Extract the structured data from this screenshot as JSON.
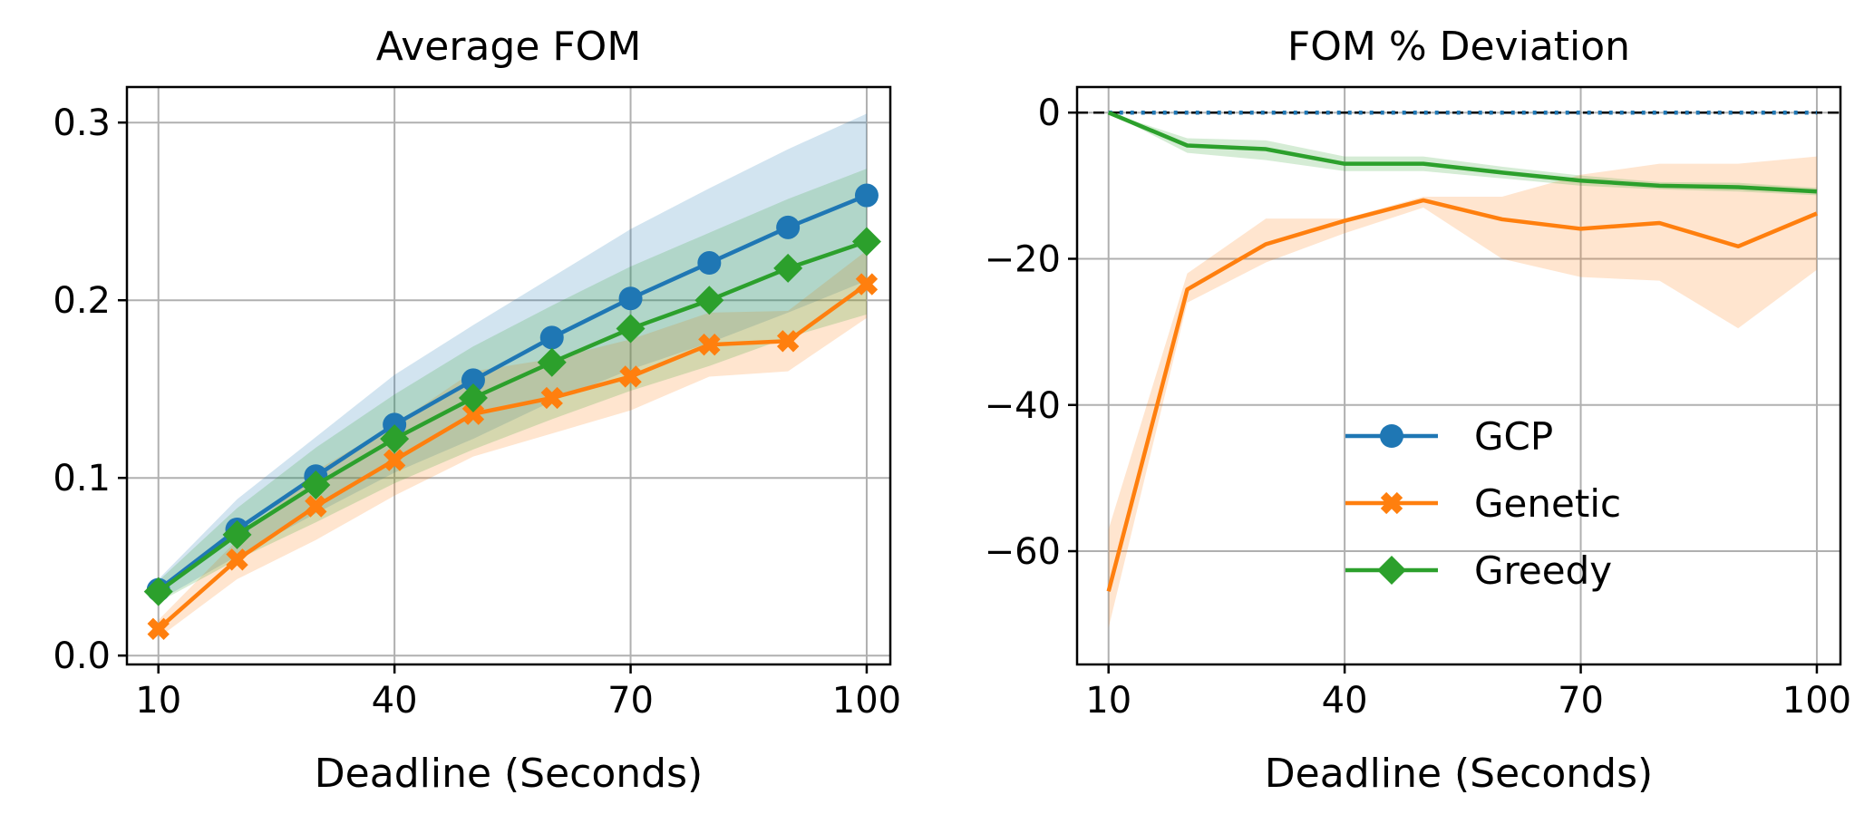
{
  "chart_data": [
    {
      "type": "line",
      "title": "Average FOM",
      "xlabel": "Deadline (Seconds)",
      "ylabel": "",
      "xlim": [
        6,
        103
      ],
      "ylim": [
        -0.005,
        0.32
      ],
      "x": [
        10,
        20,
        30,
        40,
        50,
        60,
        70,
        80,
        90,
        100
      ],
      "xticks": [
        10,
        40,
        70,
        100
      ],
      "xtick_labels": [
        "10",
        "40",
        "70",
        "100"
      ],
      "yticks": [
        0.0,
        0.1,
        0.2,
        0.3
      ],
      "ytick_labels": [
        "0.0",
        "0.1",
        "0.2",
        "0.3"
      ],
      "grid": true,
      "series": [
        {
          "name": "GCP",
          "color": "#1f77b4",
          "marker": "circle",
          "values": [
            0.037,
            0.071,
            0.101,
            0.13,
            0.155,
            0.179,
            0.201,
            0.221,
            0.241,
            0.259
          ],
          "band_low": [
            0.031,
            0.056,
            0.08,
            0.103,
            0.122,
            0.143,
            0.161,
            0.176,
            0.193,
            0.211
          ],
          "band_high": [
            0.043,
            0.088,
            0.123,
            0.158,
            0.186,
            0.213,
            0.24,
            0.263,
            0.285,
            0.305
          ]
        },
        {
          "name": "Genetic",
          "color": "#ff7f0e",
          "marker": "x",
          "values": [
            0.015,
            0.054,
            0.084,
            0.11,
            0.136,
            0.145,
            0.157,
            0.175,
            0.177,
            0.209
          ],
          "band_low": [
            0.01,
            0.043,
            0.065,
            0.09,
            0.112,
            0.125,
            0.138,
            0.157,
            0.16,
            0.19
          ],
          "band_high": [
            0.02,
            0.065,
            0.104,
            0.13,
            0.16,
            0.167,
            0.178,
            0.193,
            0.194,
            0.228
          ]
        },
        {
          "name": "Greedy",
          "color": "#2ca02c",
          "marker": "diamond",
          "values": [
            0.036,
            0.068,
            0.096,
            0.122,
            0.145,
            0.165,
            0.184,
            0.2,
            0.218,
            0.233
          ],
          "band_low": [
            0.03,
            0.054,
            0.075,
            0.097,
            0.116,
            0.133,
            0.149,
            0.163,
            0.179,
            0.192
          ],
          "band_high": [
            0.042,
            0.083,
            0.117,
            0.147,
            0.174,
            0.197,
            0.219,
            0.238,
            0.257,
            0.274
          ]
        }
      ]
    },
    {
      "type": "line",
      "title": "FOM % Deviation",
      "xlabel": "Deadline (Seconds)",
      "ylabel": "",
      "xlim": [
        6,
        103
      ],
      "ylim": [
        -75.5,
        3.5
      ],
      "x": [
        10,
        20,
        30,
        40,
        50,
        60,
        70,
        80,
        90,
        100
      ],
      "xticks": [
        10,
        40,
        70,
        100
      ],
      "xtick_labels": [
        "10",
        "40",
        "70",
        "100"
      ],
      "yticks": [
        0,
        -20,
        -40,
        -60
      ],
      "ytick_labels": [
        "0",
        "−20",
        "−40",
        "−60"
      ],
      "grid": true,
      "legend": {
        "position": "lower-right",
        "entries": [
          "GCP",
          "Genetic",
          "Greedy"
        ]
      },
      "reference_line": {
        "y": 0,
        "style": "dashed",
        "color": "#000000"
      },
      "series": [
        {
          "name": "GCP",
          "color": "#1f77b4",
          "marker": "circle",
          "line_style": "dotted",
          "values": [
            0,
            0,
            0,
            0,
            0,
            0,
            0,
            0,
            0,
            0
          ]
        },
        {
          "name": "Genetic",
          "color": "#ff7f0e",
          "marker": "x",
          "values": [
            -65.5,
            -24.2,
            -18.0,
            -14.8,
            -12.0,
            -14.6,
            -15.9,
            -15.1,
            -18.3,
            -13.8
          ],
          "band_low": [
            -70.5,
            -26.0,
            -20.5,
            -16.5,
            -13.0,
            -20.0,
            -22.5,
            -23.0,
            -29.5,
            -21.5
          ],
          "band_high": [
            -57.0,
            -22.0,
            -14.5,
            -14.5,
            -11.5,
            -11.5,
            -8.5,
            -7.0,
            -7.0,
            -6.0
          ]
        },
        {
          "name": "Greedy",
          "color": "#2ca02c",
          "marker": "diamond",
          "values": [
            0,
            -4.5,
            -5.0,
            -7.0,
            -7.0,
            -8.2,
            -9.3,
            -10.0,
            -10.2,
            -10.8
          ],
          "band_low": [
            0,
            -5.5,
            -6.5,
            -8.0,
            -8.0,
            -9.0,
            -10.0,
            -10.5,
            -10.8,
            -11.3
          ],
          "band_high": [
            0,
            -3.5,
            -3.8,
            -6.0,
            -6.0,
            -7.4,
            -8.6,
            -9.5,
            -9.6,
            -10.3
          ]
        }
      ]
    }
  ]
}
